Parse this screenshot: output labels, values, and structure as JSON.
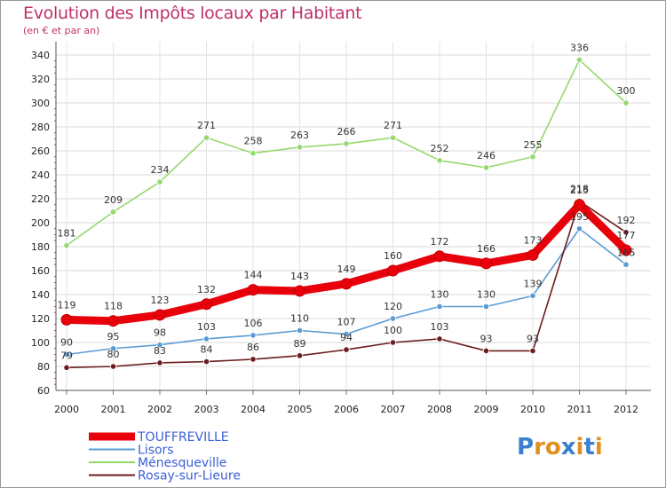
{
  "chart_data": {
    "type": "line",
    "title": "Evolution des Impôts locaux par Habitant",
    "subtitle": "(en € et par an)",
    "categories": [
      "2000",
      "2001",
      "2002",
      "2003",
      "2004",
      "2005",
      "2006",
      "2007",
      "2008",
      "2009",
      "2010",
      "2011",
      "2012"
    ],
    "ylim": [
      60,
      340
    ],
    "yticks": [
      60,
      80,
      100,
      120,
      140,
      160,
      180,
      200,
      220,
      240,
      260,
      280,
      300,
      320,
      340
    ],
    "grid": true,
    "legend_position": "bottom-left",
    "series": [
      {
        "name": "TOUFFREVILLE",
        "color": "#e8000b",
        "width": 9,
        "values": [
          119,
          118,
          123,
          132,
          144,
          143,
          149,
          160,
          172,
          166,
          173,
          215,
          177
        ]
      },
      {
        "name": "Lisors",
        "color": "#5a9bd4",
        "width": 1.6,
        "values": [
          90,
          95,
          98,
          103,
          106,
          110,
          107,
          120,
          130,
          130,
          139,
          195,
          165
        ]
      },
      {
        "name": "Ménesqueville",
        "color": "#96d86e",
        "width": 1.6,
        "values": [
          181,
          209,
          234,
          271,
          258,
          263,
          266,
          271,
          252,
          246,
          255,
          336,
          300
        ]
      },
      {
        "name": "Rosay-sur-Lieure",
        "color": "#6b1c1c",
        "width": 1.6,
        "values": [
          79,
          80,
          83,
          84,
          86,
          89,
          94,
          100,
          103,
          93,
          93,
          218,
          192
        ]
      }
    ]
  },
  "logo": {
    "letters": [
      "P",
      "r",
      "o",
      "x",
      "i",
      "t",
      "i"
    ],
    "colors": [
      "#3a7fd0",
      "#e09020",
      "#e09020",
      "#3a7fd0",
      "#e09020",
      "#3a7fd0",
      "#e09020"
    ]
  }
}
